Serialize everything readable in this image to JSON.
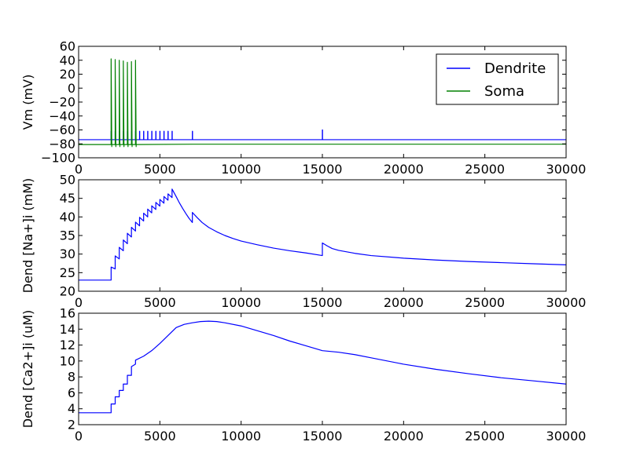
{
  "colors": {
    "dendrite": "#0000ff",
    "soma": "#008000"
  },
  "legend": {
    "entries": [
      "Dendrite",
      "Soma"
    ],
    "placement": "top-right"
  },
  "chart_data": [
    {
      "type": "line",
      "ylabel": "Vm (mV)",
      "xlim": [
        0,
        30000
      ],
      "ylim": [
        -100,
        60
      ],
      "xticks": [
        0,
        5000,
        10000,
        15000,
        20000,
        25000,
        30000
      ],
      "yticks": [
        -100,
        -80,
        -60,
        -40,
        -20,
        0,
        20,
        40,
        60
      ],
      "series": [
        {
          "name": "Dendrite",
          "color": "#0000ff",
          "x": [
            0,
            2000,
            2000,
            2010,
            2010,
            2250,
            2250,
            2260,
            2260,
            2500,
            2500,
            2510,
            2510,
            2750,
            2750,
            2760,
            2760,
            3000,
            3000,
            3010,
            3010,
            3250,
            3250,
            3260,
            3260,
            3500,
            3500,
            3510,
            3510,
            3750,
            3750,
            3760,
            3760,
            4000,
            4000,
            4010,
            4010,
            4250,
            4250,
            4260,
            4260,
            4500,
            4500,
            4510,
            4510,
            4750,
            4750,
            4760,
            4760,
            5000,
            5000,
            5010,
            5010,
            5250,
            5250,
            5260,
            5260,
            5500,
            5500,
            5510,
            5510,
            5750,
            5750,
            5760,
            5760,
            7000,
            7000,
            7010,
            7010,
            15000,
            15000,
            15010,
            15010,
            30000
          ],
          "y": [
            -74,
            -74,
            -62,
            -62,
            -74,
            -74,
            -62,
            -62,
            -74,
            -74,
            -62,
            -62,
            -74,
            -74,
            -62,
            -62,
            -74,
            -74,
            -62,
            -62,
            -74,
            -74,
            -62,
            -62,
            -74,
            -74,
            -62,
            -62,
            -74,
            -74,
            -62,
            -62,
            -74,
            -74,
            -62,
            -62,
            -74,
            -74,
            -62,
            -62,
            -74,
            -74,
            -62,
            -62,
            -74,
            -74,
            -62,
            -62,
            -74,
            -74,
            -62,
            -62,
            -74,
            -74,
            -62,
            -62,
            -74,
            -74,
            -62,
            -62,
            -74,
            -74,
            -62,
            -62,
            -74,
            -74,
            -62,
            -62,
            -74,
            -74,
            -60,
            -60,
            -74,
            -74
          ]
        },
        {
          "name": "Soma",
          "color": "#008000",
          "x": [
            0,
            2000,
            2000,
            2040,
            2040,
            2250,
            2250,
            2290,
            2290,
            2500,
            2500,
            2540,
            2540,
            2750,
            2750,
            2790,
            2790,
            3000,
            3000,
            3040,
            3040,
            3250,
            3250,
            3290,
            3290,
            3500,
            3500,
            3540,
            3540,
            7000,
            15000,
            30000
          ],
          "y": [
            -81,
            -81,
            42,
            -84,
            -81,
            -81,
            41,
            -84,
            -81,
            -81,
            40,
            -84,
            -81,
            -81,
            39,
            -84,
            -81,
            -81,
            37,
            -84,
            -81,
            -81,
            38,
            -84,
            -81,
            -81,
            40,
            -84,
            -81,
            -80.5,
            -80.5,
            -80.5
          ]
        }
      ]
    },
    {
      "type": "line",
      "ylabel": "Dend [Na+]i (mM)",
      "xlim": [
        0,
        30000
      ],
      "ylim": [
        20,
        50
      ],
      "xticks": [
        0,
        5000,
        10000,
        15000,
        20000,
        25000,
        30000
      ],
      "yticks": [
        20,
        25,
        30,
        35,
        40,
        45,
        50
      ],
      "series": [
        {
          "name": "Dendrite",
          "color": "#0000ff",
          "x": [
            0,
            2000,
            2000,
            2250,
            2250,
            2500,
            2500,
            2750,
            2750,
            3000,
            3000,
            3250,
            3250,
            3500,
            3500,
            3750,
            3750,
            4000,
            4000,
            4250,
            4250,
            4500,
            4500,
            4750,
            4750,
            5000,
            5000,
            5250,
            5250,
            5500,
            5500,
            5750,
            5750,
            6000,
            6200,
            6400,
            6600,
            6800,
            7000,
            7000,
            7300,
            7600,
            8000,
            8500,
            9000,
            9500,
            10000,
            11000,
            12000,
            13000,
            14000,
            15000,
            15000,
            15300,
            15600,
            16000,
            17000,
            18000,
            20000,
            22000,
            24000,
            26000,
            28000,
            30000
          ],
          "y": [
            23,
            23,
            26.5,
            26,
            29.5,
            28.7,
            31.8,
            30.9,
            33.8,
            32.8,
            35.6,
            34.6,
            37.2,
            36.2,
            38.6,
            37.6,
            39.9,
            38.9,
            41,
            40,
            42.1,
            41.1,
            43,
            42,
            43.9,
            42.9,
            44.7,
            43.7,
            45.5,
            44.5,
            46.2,
            45.2,
            47.5,
            45.5,
            43.8,
            42.3,
            40.9,
            39.6,
            38.5,
            41.2,
            39.8,
            38.5,
            37.2,
            36,
            35,
            34.2,
            33.5,
            32.5,
            31.6,
            30.9,
            30.3,
            29.6,
            33,
            32.2,
            31.5,
            31,
            30.2,
            29.6,
            28.9,
            28.4,
            28,
            27.7,
            27.4,
            27.1
          ]
        }
      ]
    },
    {
      "type": "line",
      "ylabel": "Dend [Ca2+]i (uM)",
      "xlim": [
        0,
        30000
      ],
      "ylim": [
        2,
        16
      ],
      "xticks": [
        0,
        5000,
        10000,
        15000,
        20000,
        25000,
        30000
      ],
      "yticks": [
        2,
        4,
        6,
        8,
        10,
        12,
        14,
        16
      ],
      "series": [
        {
          "name": "Dendrite",
          "color": "#0000ff",
          "x": [
            0,
            2000,
            2000,
            2250,
            2250,
            2500,
            2500,
            2750,
            2750,
            3000,
            3000,
            3250,
            3250,
            3500,
            3500,
            4000,
            4500,
            5000,
            5500,
            6000,
            6500,
            7000,
            7500,
            8000,
            8500,
            9000,
            10000,
            11000,
            12000,
            13000,
            14000,
            15000,
            15500,
            16000,
            17000,
            18000,
            20000,
            22000,
            24000,
            26000,
            28000,
            30000
          ],
          "y": [
            3.5,
            3.5,
            4.6,
            4.6,
            5.5,
            5.5,
            6.3,
            6.3,
            7.1,
            7.1,
            8.2,
            8.2,
            9.3,
            9.6,
            10.1,
            10.6,
            11.3,
            12.2,
            13.2,
            14.2,
            14.6,
            14.8,
            14.95,
            15,
            14.95,
            14.8,
            14.4,
            13.8,
            13.2,
            12.5,
            11.9,
            11.3,
            11.2,
            11.1,
            10.8,
            10.4,
            9.6,
            8.95,
            8.4,
            7.9,
            7.5,
            7.1
          ]
        }
      ]
    }
  ]
}
